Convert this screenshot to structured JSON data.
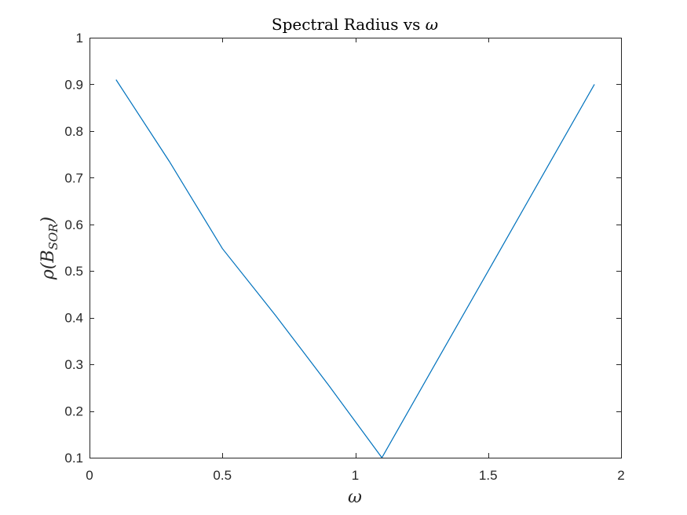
{
  "chart_data": {
    "type": "line",
    "title_prefix": "Spectral Radius vs ",
    "title_symbol": "ω",
    "xlabel": "ω",
    "ylabel_prefix": "ρ(B",
    "ylabel_sub": "SOR",
    "ylabel_suffix": ")",
    "xlim": [
      0,
      2
    ],
    "ylim": [
      0.1,
      1
    ],
    "xticks": [
      0,
      0.5,
      1,
      1.5,
      2
    ],
    "xtick_labels": [
      "0",
      "0.5",
      "1",
      "1.5",
      "2"
    ],
    "yticks": [
      0.1,
      0.2,
      0.3,
      0.4,
      0.5,
      0.6,
      0.7,
      0.8,
      0.9,
      1
    ],
    "ytick_labels": [
      "0.1",
      "0.2",
      "0.3",
      "0.4",
      "0.5",
      "0.6",
      "0.7",
      "0.8",
      "0.9",
      "1"
    ],
    "grid": false,
    "series": [
      {
        "color": "#0072BD",
        "x": [
          0.1,
          0.3,
          0.5,
          0.7,
          0.9,
          1.1,
          1.3,
          1.5,
          1.7,
          1.9
        ],
        "y": [
          0.91,
          0.735,
          0.548,
          0.405,
          0.255,
          0.1,
          0.3,
          0.5,
          0.7,
          0.9
        ]
      }
    ]
  }
}
